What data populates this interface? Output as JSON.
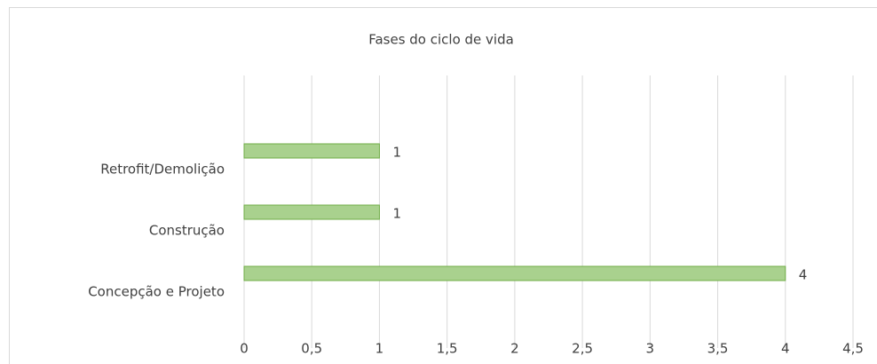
{
  "chart_data": {
    "type": "bar",
    "orientation": "horizontal",
    "title": "Fases do ciclo de vida",
    "categories": [
      "Retrofit/Demolição",
      "Construção",
      "Concepção e Projeto"
    ],
    "values": [
      1,
      1,
      4
    ],
    "color": "#a9d18e",
    "edge_color": "#70ad47",
    "xlim": [
      0,
      4.5
    ],
    "xticks": [
      0,
      {
        "value": 0.5,
        "label": "0,5"
      },
      1,
      {
        "value": 1.5,
        "label": "1,5"
      },
      2,
      {
        "value": 2.5,
        "label": "2,5"
      },
      3,
      {
        "value": 3.5,
        "label": "3,5"
      },
      4,
      {
        "value": 4.5,
        "label": "4,5"
      }
    ],
    "grid": true
  }
}
